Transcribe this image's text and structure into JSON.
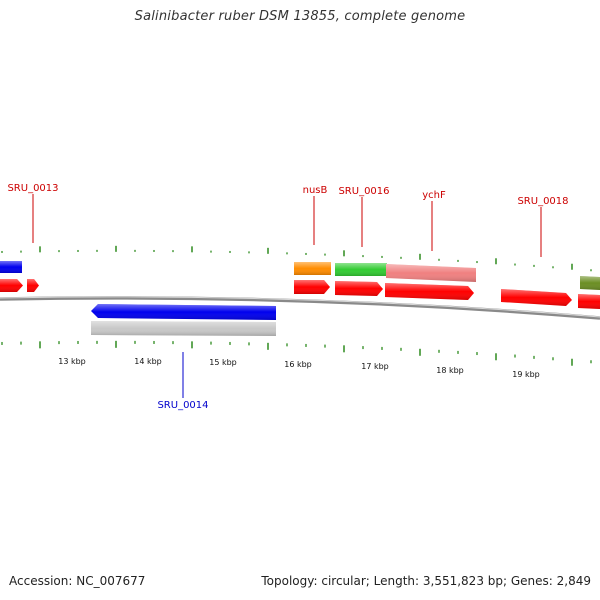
{
  "title": "Salinibacter ruber DSM 13855, complete genome",
  "footer": {
    "accession": "Accession: NC_007677",
    "summary": "Topology: circular; Length: 3,551,823 bp; Genes: 2,849"
  },
  "colors": {
    "forward_label": "#cc0000",
    "reverse_label": "#0000cc",
    "backbone": "#8a8a8a",
    "tick_marks": "#2e8b1e",
    "gene_red": "#ff0000",
    "gene_blue": "#0000ee",
    "gene_orange": "#ff8c00",
    "gene_green": "#33cc33",
    "gene_pink": "#f08080",
    "gene_olive": "#6b8e23",
    "gene_gray": "#c8c8c8"
  },
  "scale_labels": [
    "13 kbp",
    "14 kbp",
    "15 kbp",
    "16 kbp",
    "17 kbp",
    "18 kbp",
    "19 kbp"
  ],
  "gene_labels": {
    "sru_0013": "SRU_0013",
    "nusb": "nusB",
    "sru_0016": "SRU_0016",
    "ychf": "ychF",
    "sru_0018": "SRU_0018",
    "sru_0014": "SRU_0014"
  }
}
